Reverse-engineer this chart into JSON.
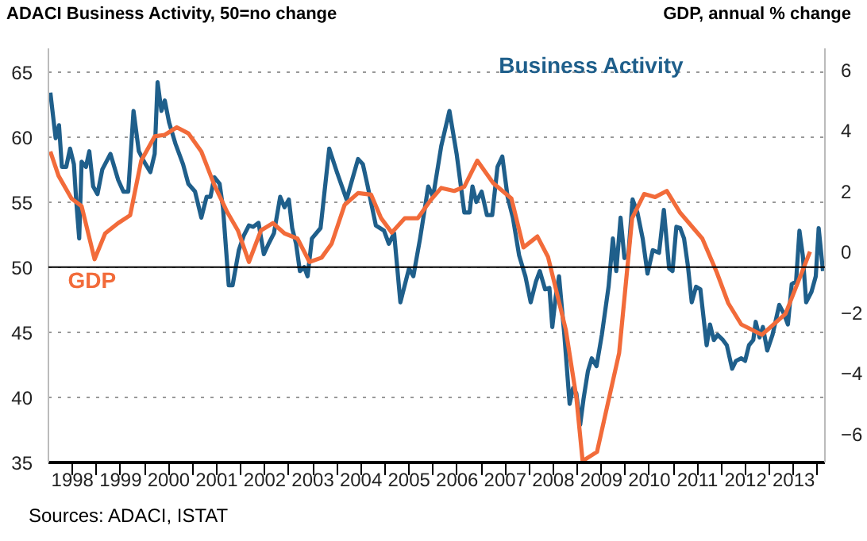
{
  "chart_data": {
    "type": "line",
    "ylabel": "ADACI  Business Activity, 50=no change",
    "y2label": "GDP, annual % change",
    "annotations": [
      "Sources: ADACI, ISTAT"
    ],
    "xlim": [
      1998.0,
      2014.15
    ],
    "xticks": [
      {
        "value": 1999,
        "label": null
      },
      {
        "value": 2000,
        "label": null
      },
      {
        "value": 2001,
        "label": null
      },
      {
        "value": 2002,
        "label": null
      },
      {
        "value": 2003,
        "label": null
      },
      {
        "value": 2004,
        "label": null
      },
      {
        "value": 2005,
        "label": null
      },
      {
        "value": 2006,
        "label": null
      },
      {
        "value": 2007,
        "label": null
      },
      {
        "value": 2008,
        "label": null
      },
      {
        "value": 2009,
        "label": null
      },
      {
        "value": 2010,
        "label": null
      },
      {
        "value": 2011,
        "label": null
      },
      {
        "value": 2012,
        "label": null
      },
      {
        "value": 2013,
        "label": null
      },
      {
        "value": 2014,
        "label": null
      },
      {
        "value": 1998.5,
        "label": "1998"
      },
      {
        "value": 1999.5,
        "label": "1999"
      },
      {
        "value": 2000.5,
        "label": "2000"
      },
      {
        "value": 2001.5,
        "label": "2001"
      },
      {
        "value": 2002.5,
        "label": "2002"
      },
      {
        "value": 2003.5,
        "label": "2003"
      },
      {
        "value": 2004.5,
        "label": "2004"
      },
      {
        "value": 2005.5,
        "label": "2005"
      },
      {
        "value": 2006.5,
        "label": "2006"
      },
      {
        "value": 2007.5,
        "label": "2007"
      },
      {
        "value": 2008.5,
        "label": "2008"
      },
      {
        "value": 2009.5,
        "label": "2009"
      },
      {
        "value": 2010.5,
        "label": "2010"
      },
      {
        "value": 2011.5,
        "label": "2011"
      },
      {
        "value": 2012.5,
        "label": "2012"
      },
      {
        "value": 2013.5,
        "label": "2013"
      }
    ],
    "ylim": [
      35,
      66.8
    ],
    "yticks": [
      35,
      40,
      45,
      50,
      55,
      60,
      65
    ],
    "y2lim": [
      -6.95,
      6.7
    ],
    "y2ticks": [
      -6,
      -4,
      -2,
      0,
      2,
      4,
      6
    ],
    "grid": "y",
    "ref_lines": [
      {
        "axis": "y",
        "value": 50,
        "color": "#000000"
      }
    ],
    "series": [
      {
        "name": "Business Activity",
        "color": "#1f5f8b",
        "x": [
          1998.04,
          1998.15,
          1998.22,
          1998.28,
          1998.37,
          1998.45,
          1998.53,
          1998.58,
          1998.64,
          1998.69,
          1998.78,
          1998.85,
          1998.93,
          1999.02,
          1999.12,
          1999.29,
          1999.45,
          1999.56,
          1999.66,
          1999.77,
          1999.88,
          1999.99,
          2000.12,
          2000.21,
          2000.27,
          2000.35,
          2000.42,
          2000.51,
          2000.64,
          2000.8,
          2000.91,
          2001.05,
          2001.18,
          2001.29,
          2001.37,
          2001.45,
          2001.56,
          2001.63,
          2001.75,
          2001.83,
          2001.96,
          2002.06,
          2002.17,
          2002.26,
          2002.37,
          2002.48,
          2002.58,
          2002.69,
          2002.82,
          2002.91,
          2003.0,
          2003.07,
          2003.15,
          2003.23,
          2003.32,
          2003.39,
          2003.48,
          2003.66,
          2003.84,
          2004.0,
          2004.2,
          2004.44,
          2004.54,
          2004.63,
          2004.81,
          2004.98,
          2005.08,
          2005.19,
          2005.32,
          2005.5,
          2005.59,
          2005.73,
          2005.9,
          2006.0,
          2006.17,
          2006.34,
          2006.49,
          2006.65,
          2006.76,
          2006.82,
          2006.9,
          2007.01,
          2007.12,
          2007.23,
          2007.34,
          2007.44,
          2007.55,
          2007.66,
          2007.79,
          2007.92,
          2008.03,
          2008.14,
          2008.22,
          2008.33,
          2008.42,
          2008.48,
          2008.55,
          2008.62,
          2008.73,
          2008.84,
          2008.91,
          2008.98,
          2009.06,
          2009.13,
          2009.22,
          2009.3,
          2009.4,
          2009.51,
          2009.65,
          2009.74,
          2009.81,
          2009.9,
          2009.98,
          2010.06,
          2010.15,
          2010.25,
          2010.36,
          2010.46,
          2010.57,
          2010.7,
          2010.8,
          2010.91,
          2010.98,
          2011.06,
          2011.14,
          2011.22,
          2011.3,
          2011.38,
          2011.47,
          2011.56,
          2011.69,
          2011.76,
          2011.84,
          2011.92,
          2012.03,
          2012.11,
          2012.22,
          2012.3,
          2012.41,
          2012.49,
          2012.57,
          2012.66,
          2012.71,
          2012.79,
          2012.86,
          2012.95,
          2013.06,
          2013.2,
          2013.3,
          2013.38,
          2013.46,
          2013.55,
          2013.62,
          2013.69,
          2013.76,
          2013.87,
          2013.96,
          2014.02,
          2014.11
        ],
        "values": [
          63.4,
          59.9,
          60.9,
          57.7,
          57.7,
          59.1,
          57.9,
          55.0,
          52.2,
          58.1,
          57.7,
          58.9,
          56.2,
          55.6,
          57.5,
          58.7,
          56.7,
          55.8,
          55.8,
          62.0,
          58.9,
          58.1,
          57.3,
          58.7,
          64.2,
          62.0,
          62.8,
          61.1,
          59.5,
          57.9,
          56.4,
          55.8,
          53.8,
          55.4,
          55.4,
          56.9,
          56.4,
          54.6,
          48.6,
          48.6,
          51.3,
          52.4,
          53.2,
          53.1,
          53.4,
          51.0,
          51.8,
          52.6,
          55.4,
          54.6,
          55.2,
          53.0,
          51.8,
          49.7,
          50.0,
          49.3,
          52.2,
          53.0,
          59.1,
          57.3,
          55.2,
          58.3,
          57.9,
          56.4,
          53.2,
          52.8,
          51.8,
          52.6,
          47.3,
          49.9,
          49.3,
          52.2,
          56.2,
          55.4,
          59.3,
          62.0,
          58.7,
          54.2,
          54.2,
          56.2,
          55.0,
          55.8,
          54.0,
          54.0,
          57.7,
          58.5,
          55.4,
          53.8,
          50.9,
          49.3,
          47.3,
          48.9,
          49.7,
          48.3,
          48.4,
          45.4,
          47.7,
          49.3,
          44.8,
          39.5,
          40.7,
          40.3,
          37.9,
          39.9,
          42.0,
          43.0,
          42.4,
          44.8,
          48.5,
          52.2,
          49.7,
          53.8,
          50.7,
          50.9,
          55.2,
          54.2,
          52.2,
          49.5,
          51.3,
          51.1,
          54.4,
          49.9,
          49.7,
          53.1,
          53.0,
          52.2,
          50.1,
          47.3,
          48.5,
          48.3,
          44.0,
          45.6,
          44.4,
          44.8,
          44.4,
          44.0,
          42.2,
          42.8,
          43.0,
          42.8,
          44.0,
          44.4,
          45.8,
          44.6,
          45.4,
          43.6,
          44.8,
          47.1,
          46.4,
          45.6,
          48.7,
          48.9,
          52.8,
          50.9,
          47.3,
          48.1,
          49.3,
          53.0,
          49.7
        ]
      },
      {
        "name": "GDP",
        "color": "#f26b3a",
        "axis": "y2",
        "x": [
          1998.04,
          1998.21,
          1998.48,
          1998.69,
          1998.96,
          1999.18,
          1999.45,
          1999.7,
          1999.93,
          2000.21,
          2000.42,
          2000.67,
          2000.91,
          2001.18,
          2001.45,
          2001.72,
          2001.94,
          2002.17,
          2002.42,
          2002.67,
          2002.91,
          2003.18,
          2003.43,
          2003.68,
          2003.89,
          2004.16,
          2004.44,
          2004.71,
          2004.92,
          2005.14,
          2005.41,
          2005.68,
          2005.95,
          2006.17,
          2006.44,
          2006.65,
          2006.92,
          2007.25,
          2007.63,
          2007.88,
          2008.17,
          2008.39,
          2008.76,
          2008.98,
          2009.11,
          2009.41,
          2009.87,
          2010.14,
          2010.39,
          2010.62,
          2010.86,
          2011.14,
          2011.6,
          2011.9,
          2012.14,
          2012.41,
          2012.84,
          2013.33,
          2013.84
        ],
        "values": [
          3.3,
          2.5,
          1.75,
          1.5,
          -0.25,
          0.6,
          0.94,
          1.2,
          3.0,
          3.8,
          3.85,
          4.1,
          3.9,
          3.3,
          2.2,
          1.3,
          0.7,
          -0.34,
          0.7,
          0.94,
          0.6,
          0.43,
          -0.34,
          -0.2,
          0.26,
          1.54,
          1.93,
          1.88,
          1.1,
          0.63,
          1.1,
          1.1,
          1.7,
          2.1,
          2.0,
          2.14,
          3.0,
          2.26,
          1.75,
          0.14,
          0.5,
          -0.17,
          -2.57,
          -4.8,
          -6.9,
          -6.6,
          -3.34,
          1.1,
          1.9,
          1.8,
          2.0,
          1.28,
          0.43,
          -0.68,
          -1.7,
          -2.4,
          -2.74,
          -2.05,
          0
        ]
      }
    ]
  }
}
